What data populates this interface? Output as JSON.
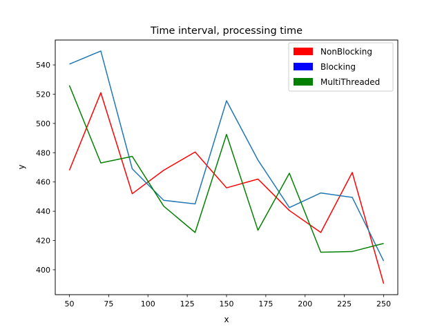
{
  "chart_data": {
    "type": "line",
    "title": "Time interval, processing time",
    "xlabel": "x",
    "ylabel": "y",
    "xlim": [
      41,
      259
    ],
    "ylim": [
      383,
      557
    ],
    "x_ticks": [
      50,
      75,
      100,
      125,
      150,
      175,
      200,
      225,
      250
    ],
    "y_ticks": [
      400,
      420,
      440,
      460,
      480,
      500,
      520,
      540
    ],
    "grid": false,
    "legend_position": "top-right",
    "x": [
      50,
      70,
      90,
      110,
      130,
      150,
      170,
      190,
      210,
      230,
      250
    ],
    "series": [
      {
        "name": "NonBlocking",
        "legend_color": "#ff0000",
        "color": "#ff0000",
        "values": [
          468,
          521,
          452,
          468,
          480.5,
          456,
          462,
          440.5,
          425.5,
          466.5,
          390.5
        ]
      },
      {
        "name": "Blocking",
        "legend_color": "#0000ff",
        "color": "#1f77b4",
        "values": [
          540.5,
          549.5,
          469,
          447.5,
          445,
          515.5,
          475,
          442.5,
          452.5,
          449.5,
          406
        ]
      },
      {
        "name": "MultiThreaded",
        "legend_color": "#008000",
        "color": "#008000",
        "values": [
          526,
          473,
          477.5,
          443.5,
          425.5,
          492.5,
          427,
          466,
          412,
          412.5,
          418
        ]
      }
    ]
  }
}
